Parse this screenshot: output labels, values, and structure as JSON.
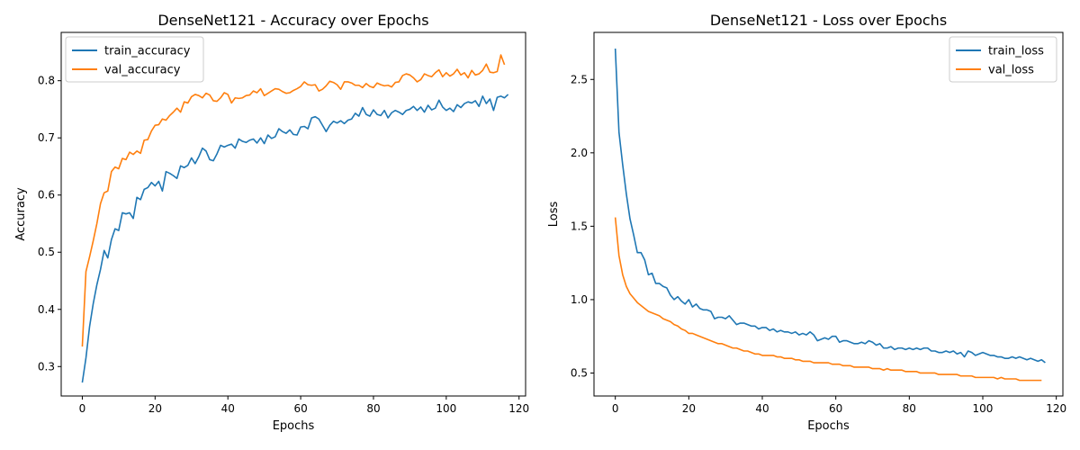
{
  "chart_data": [
    {
      "type": "line",
      "title": "DenseNet121 - Accuracy over Epochs",
      "xlabel": "Epochs",
      "ylabel": "Accuracy",
      "xlim": [
        -5.8,
        121.8
      ],
      "ylim": [
        0.2485,
        0.8845
      ],
      "xticks": [
        0,
        20,
        40,
        60,
        80,
        100,
        120
      ],
      "yticks": [
        0.3,
        0.4,
        0.5,
        0.6,
        0.7,
        0.8
      ],
      "ytick_labels": [
        "0.3",
        "0.4",
        "0.5",
        "0.6",
        "0.7",
        "0.8"
      ],
      "legend": "top-left",
      "grid": false,
      "series": [
        {
          "name": "train_accuracy",
          "color": "#1f77b4",
          "values": [
            0.272,
            0.315,
            0.37,
            0.41,
            0.443,
            0.47,
            0.503,
            0.49,
            0.522,
            0.541,
            0.538,
            0.569,
            0.567,
            0.569,
            0.559,
            0.596,
            0.592,
            0.61,
            0.613,
            0.622,
            0.616,
            0.624,
            0.607,
            0.641,
            0.638,
            0.634,
            0.629,
            0.651,
            0.648,
            0.652,
            0.665,
            0.655,
            0.667,
            0.682,
            0.677,
            0.662,
            0.66,
            0.672,
            0.687,
            0.684,
            0.687,
            0.689,
            0.682,
            0.698,
            0.694,
            0.692,
            0.696,
            0.698,
            0.691,
            0.7,
            0.69,
            0.705,
            0.699,
            0.702,
            0.716,
            0.711,
            0.708,
            0.714,
            0.706,
            0.705,
            0.719,
            0.72,
            0.716,
            0.735,
            0.737,
            0.733,
            0.722,
            0.711,
            0.722,
            0.729,
            0.726,
            0.73,
            0.725,
            0.731,
            0.733,
            0.743,
            0.738,
            0.753,
            0.741,
            0.738,
            0.749,
            0.741,
            0.739,
            0.748,
            0.735,
            0.744,
            0.748,
            0.745,
            0.741,
            0.748,
            0.75,
            0.755,
            0.748,
            0.754,
            0.745,
            0.757,
            0.749,
            0.752,
            0.766,
            0.754,
            0.748,
            0.752,
            0.746,
            0.758,
            0.753,
            0.76,
            0.763,
            0.761,
            0.765,
            0.755,
            0.773,
            0.76,
            0.768,
            0.748,
            0.771,
            0.773,
            0.77,
            0.776
          ]
        },
        {
          "name": "val_accuracy",
          "color": "#ff7f0e",
          "values": [
            0.335,
            0.466,
            0.492,
            0.52,
            0.55,
            0.585,
            0.604,
            0.607,
            0.641,
            0.649,
            0.646,
            0.664,
            0.662,
            0.675,
            0.671,
            0.677,
            0.673,
            0.696,
            0.697,
            0.712,
            0.722,
            0.723,
            0.733,
            0.731,
            0.739,
            0.745,
            0.752,
            0.745,
            0.763,
            0.761,
            0.772,
            0.776,
            0.774,
            0.77,
            0.778,
            0.775,
            0.765,
            0.764,
            0.77,
            0.779,
            0.776,
            0.761,
            0.77,
            0.769,
            0.77,
            0.774,
            0.775,
            0.782,
            0.779,
            0.786,
            0.774,
            0.778,
            0.782,
            0.786,
            0.785,
            0.781,
            0.778,
            0.779,
            0.783,
            0.786,
            0.79,
            0.798,
            0.793,
            0.792,
            0.793,
            0.782,
            0.785,
            0.791,
            0.799,
            0.797,
            0.793,
            0.785,
            0.798,
            0.798,
            0.796,
            0.792,
            0.792,
            0.788,
            0.795,
            0.79,
            0.788,
            0.796,
            0.793,
            0.791,
            0.792,
            0.789,
            0.797,
            0.798,
            0.809,
            0.812,
            0.81,
            0.805,
            0.798,
            0.802,
            0.812,
            0.809,
            0.807,
            0.814,
            0.819,
            0.807,
            0.814,
            0.808,
            0.812,
            0.82,
            0.81,
            0.814,
            0.805,
            0.818,
            0.81,
            0.812,
            0.818,
            0.829,
            0.815,
            0.814,
            0.816,
            0.845,
            0.828
          ]
        }
      ]
    },
    {
      "type": "line",
      "title": "DenseNet121 - Loss over Epochs",
      "xlabel": "Epochs",
      "ylabel": "Loss",
      "xlim": [
        -5.8,
        121.8
      ],
      "ylim": [
        0.3435,
        2.8205
      ],
      "xticks": [
        0,
        20,
        40,
        60,
        80,
        100,
        120
      ],
      "yticks": [
        0.5,
        1.0,
        1.5,
        2.0,
        2.5
      ],
      "ytick_labels": [
        "0.5",
        "1.0",
        "1.5",
        "2.0",
        "2.5"
      ],
      "legend": "top-right",
      "grid": false,
      "series": [
        {
          "name": "train_loss",
          "color": "#1f77b4",
          "values": [
            2.71,
            2.14,
            1.92,
            1.72,
            1.55,
            1.44,
            1.32,
            1.32,
            1.27,
            1.17,
            1.18,
            1.11,
            1.11,
            1.09,
            1.08,
            1.03,
            1.0,
            1.02,
            0.99,
            0.97,
            1.0,
            0.95,
            0.97,
            0.94,
            0.93,
            0.93,
            0.92,
            0.87,
            0.88,
            0.88,
            0.87,
            0.89,
            0.86,
            0.83,
            0.84,
            0.84,
            0.83,
            0.82,
            0.82,
            0.8,
            0.81,
            0.81,
            0.79,
            0.8,
            0.78,
            0.79,
            0.78,
            0.78,
            0.77,
            0.78,
            0.76,
            0.77,
            0.76,
            0.78,
            0.76,
            0.72,
            0.73,
            0.74,
            0.73,
            0.75,
            0.75,
            0.71,
            0.72,
            0.72,
            0.71,
            0.7,
            0.7,
            0.71,
            0.7,
            0.72,
            0.71,
            0.69,
            0.7,
            0.67,
            0.67,
            0.68,
            0.66,
            0.67,
            0.67,
            0.66,
            0.67,
            0.66,
            0.67,
            0.66,
            0.67,
            0.67,
            0.65,
            0.65,
            0.64,
            0.64,
            0.65,
            0.64,
            0.65,
            0.63,
            0.64,
            0.61,
            0.65,
            0.64,
            0.62,
            0.63,
            0.64,
            0.63,
            0.62,
            0.62,
            0.61,
            0.61,
            0.6,
            0.6,
            0.61,
            0.6,
            0.61,
            0.6,
            0.59,
            0.6,
            0.59,
            0.58,
            0.59,
            0.57
          ]
        },
        {
          "name": "val_loss",
          "color": "#ff7f0e",
          "values": [
            1.56,
            1.3,
            1.17,
            1.09,
            1.04,
            1.01,
            0.98,
            0.96,
            0.94,
            0.92,
            0.91,
            0.9,
            0.89,
            0.87,
            0.86,
            0.85,
            0.83,
            0.82,
            0.8,
            0.79,
            0.77,
            0.77,
            0.76,
            0.75,
            0.74,
            0.73,
            0.72,
            0.71,
            0.7,
            0.7,
            0.69,
            0.68,
            0.67,
            0.67,
            0.66,
            0.65,
            0.65,
            0.64,
            0.63,
            0.63,
            0.62,
            0.62,
            0.62,
            0.62,
            0.61,
            0.61,
            0.6,
            0.6,
            0.6,
            0.59,
            0.59,
            0.58,
            0.58,
            0.58,
            0.57,
            0.57,
            0.57,
            0.57,
            0.57,
            0.56,
            0.56,
            0.56,
            0.55,
            0.55,
            0.55,
            0.54,
            0.54,
            0.54,
            0.54,
            0.54,
            0.53,
            0.53,
            0.53,
            0.52,
            0.53,
            0.52,
            0.52,
            0.52,
            0.52,
            0.51,
            0.51,
            0.51,
            0.51,
            0.5,
            0.5,
            0.5,
            0.5,
            0.5,
            0.49,
            0.49,
            0.49,
            0.49,
            0.49,
            0.49,
            0.48,
            0.48,
            0.48,
            0.48,
            0.47,
            0.47,
            0.47,
            0.47,
            0.47,
            0.47,
            0.46,
            0.47,
            0.46,
            0.46,
            0.46,
            0.46,
            0.45,
            0.45,
            0.45,
            0.45,
            0.45,
            0.45,
            0.45
          ]
        }
      ]
    }
  ]
}
